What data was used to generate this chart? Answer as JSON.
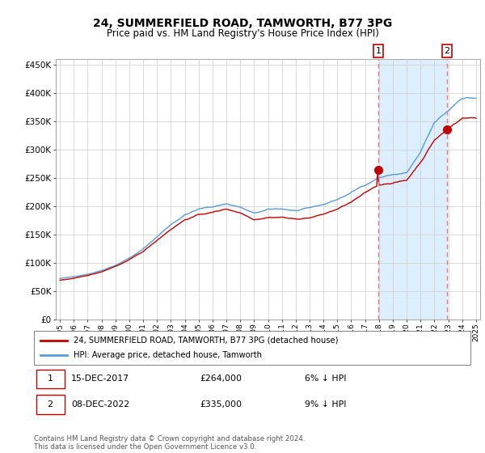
{
  "title": "24, SUMMERFIELD ROAD, TAMWORTH, B77 3PG",
  "subtitle": "Price paid vs. HM Land Registry's House Price Index (HPI)",
  "ylabel_ticks": [
    "£0",
    "£50K",
    "£100K",
    "£150K",
    "£200K",
    "£250K",
    "£300K",
    "£350K",
    "£400K",
    "£450K"
  ],
  "ytick_vals": [
    0,
    50000,
    100000,
    150000,
    200000,
    250000,
    300000,
    350000,
    400000,
    450000
  ],
  "ylim": [
    0,
    460000
  ],
  "xlim_start": 1994.7,
  "xlim_end": 2025.3,
  "transaction1": {
    "date_num": 2017.958,
    "price": 264000,
    "label": "1"
  },
  "transaction2": {
    "date_num": 2022.917,
    "price": 335000,
    "label": "2"
  },
  "hpi_color": "#5b9bd5",
  "price_color": "#c00000",
  "shade_color": "#ddeeff",
  "dashed_color": "#e87878",
  "annotation_box_color": "#c00000",
  "legend_label_price": "24, SUMMERFIELD ROAD, TAMWORTH, B77 3PG (detached house)",
  "legend_label_hpi": "HPI: Average price, detached house, Tamworth",
  "footnote": "Contains HM Land Registry data © Crown copyright and database right 2024.\nThis data is licensed under the Open Government Licence v3.0."
}
